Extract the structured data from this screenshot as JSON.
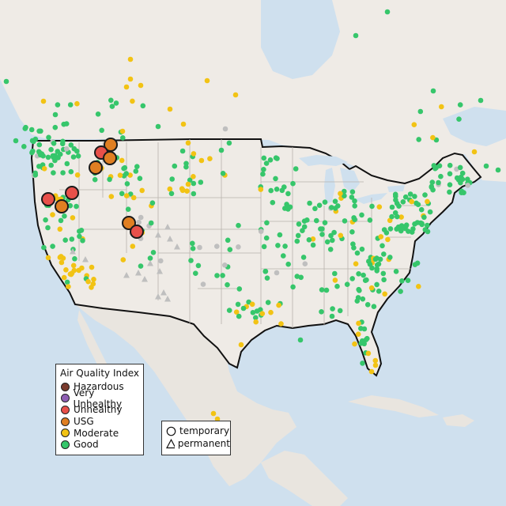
{
  "legend": {
    "title": "Air Quality Index",
    "categories": [
      {
        "label": "Hazardous",
        "color": "#7a3b2e"
      },
      {
        "label": "Very Unhealthy",
        "color": "#8e5fb4"
      },
      {
        "label": "Unhealthy",
        "color": "#e8504a"
      },
      {
        "label": "USG",
        "color": "#e07f22"
      },
      {
        "label": "Moderate",
        "color": "#f2c314"
      },
      {
        "label": "Good",
        "color": "#36c66b"
      }
    ]
  },
  "monitor_types": {
    "temporary": "temporary",
    "permanent": "permanent"
  },
  "colors": {
    "water": "#cfe0ee",
    "land": "#efebe6",
    "other_land": "#e9e5df",
    "border": "#111111",
    "state_lines": "#b8b3ad",
    "no_data": "#bfbfbf"
  }
}
